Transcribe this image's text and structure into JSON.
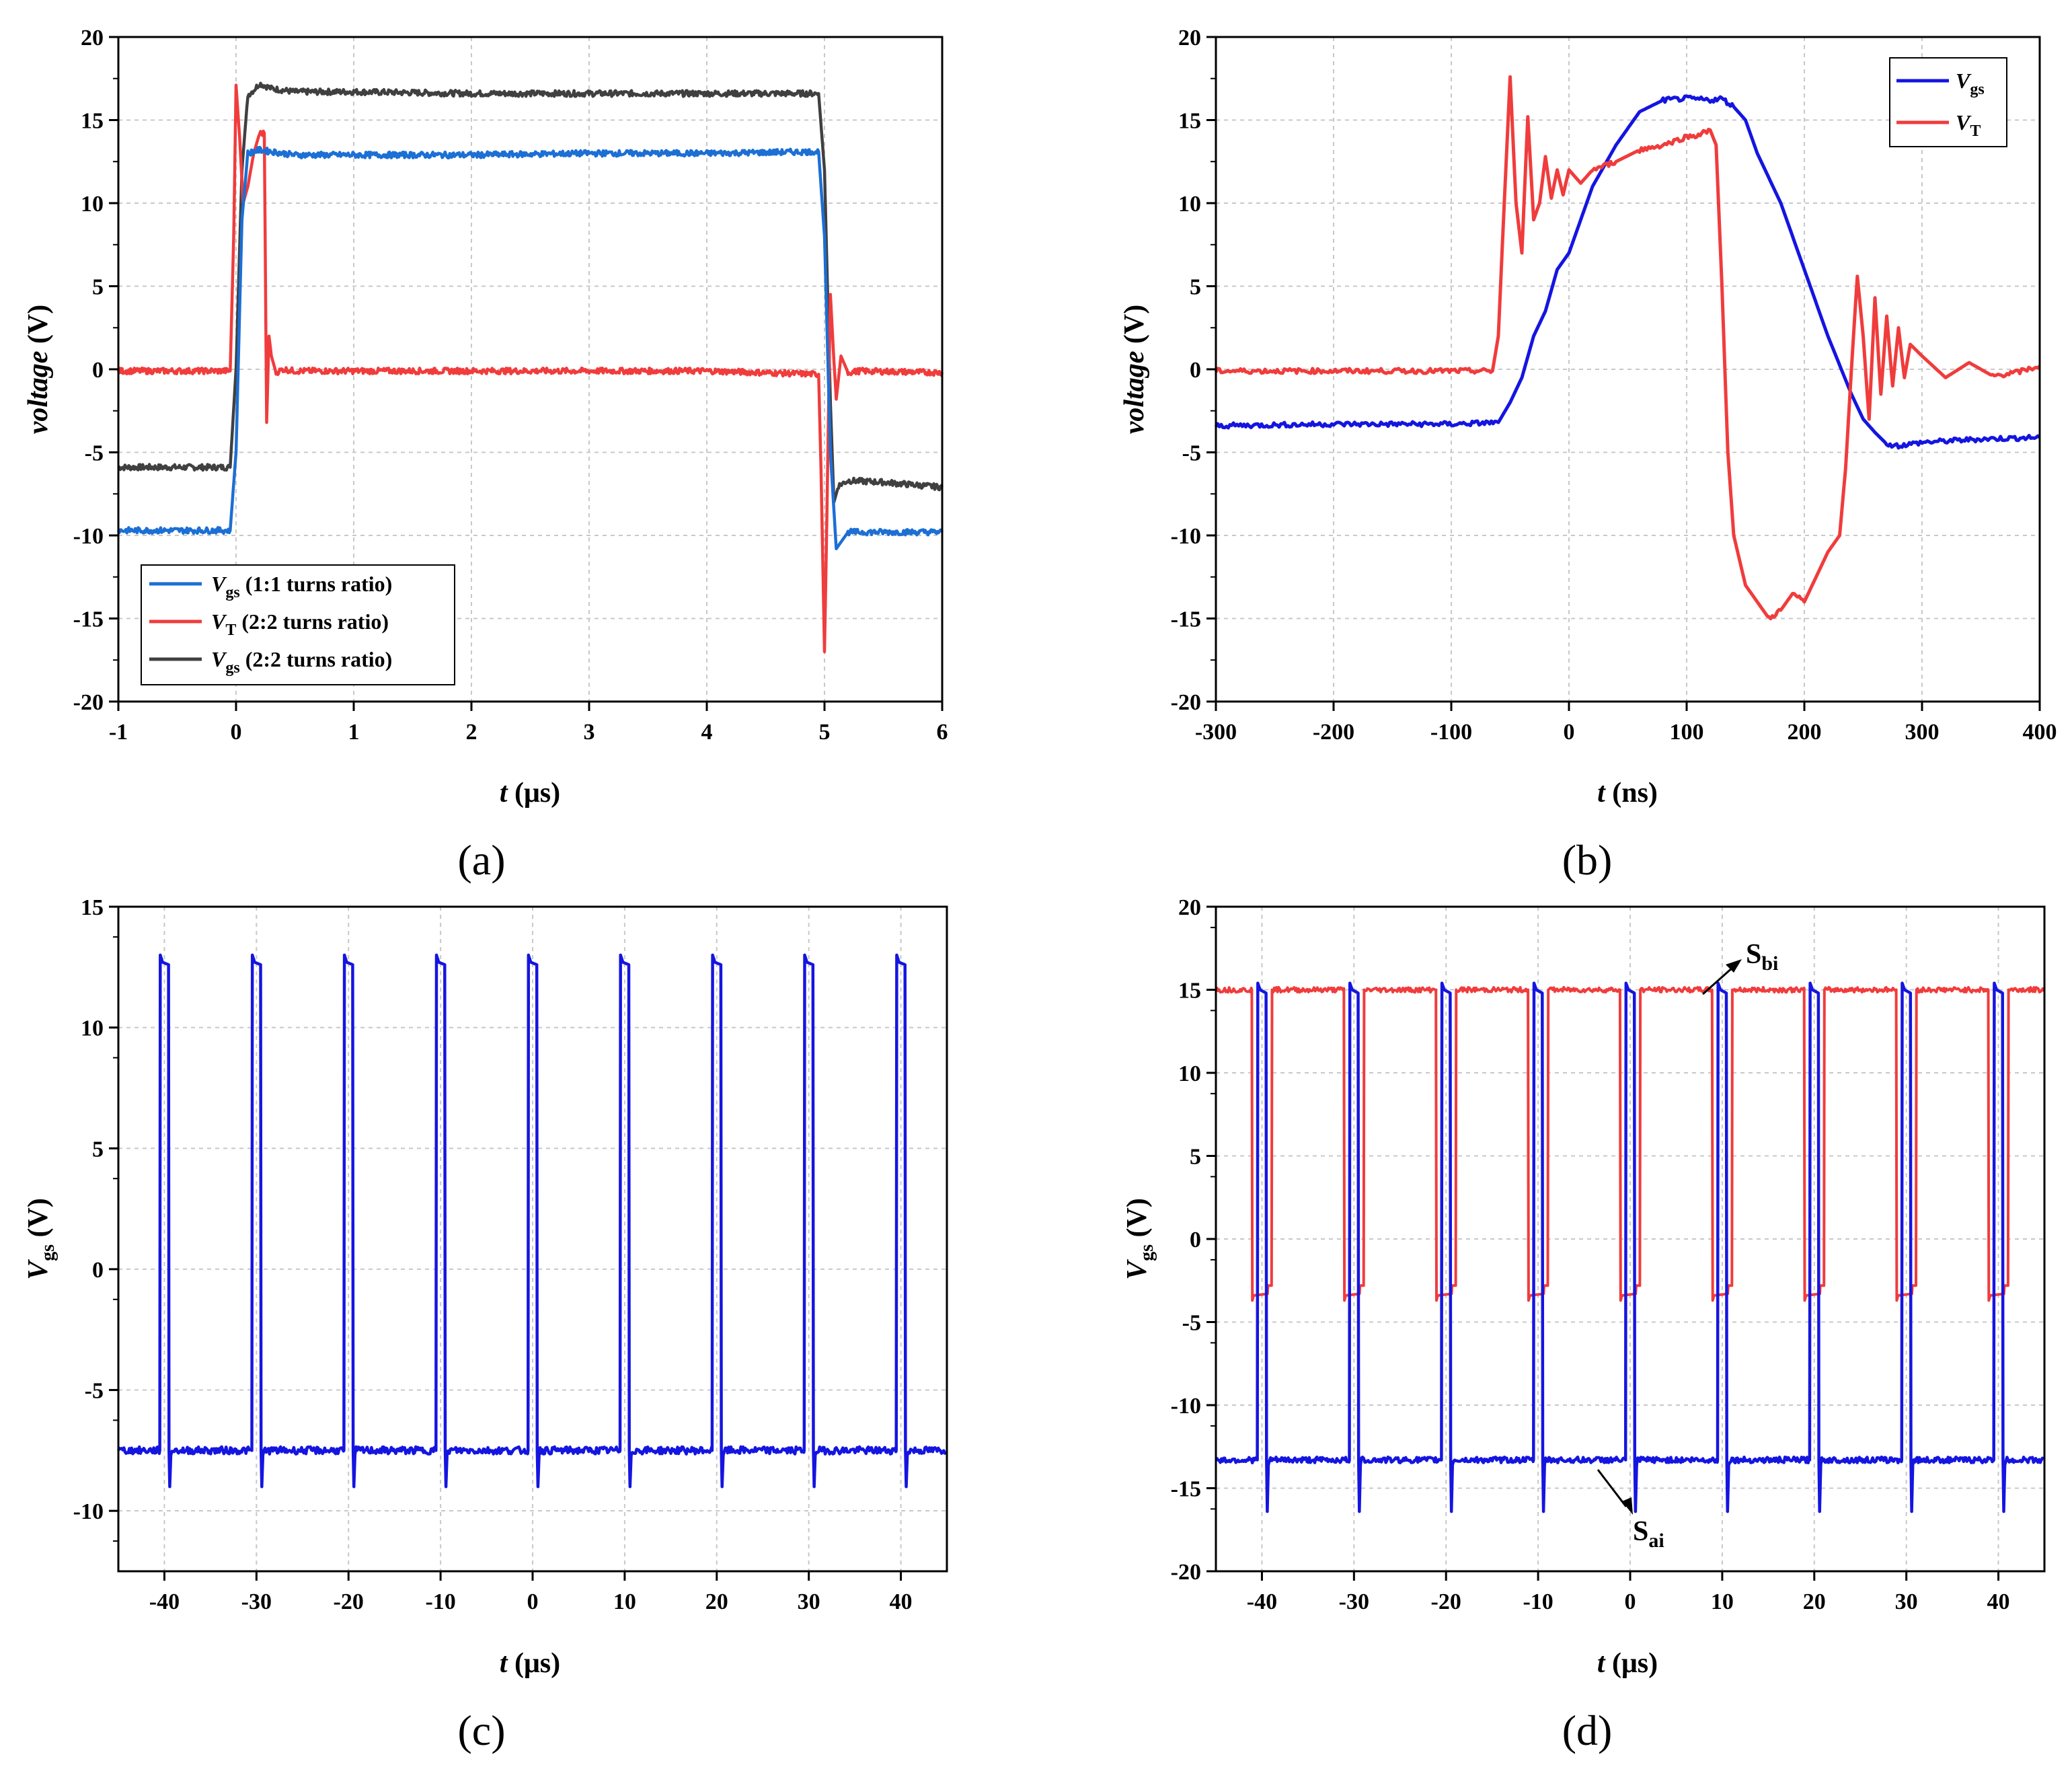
{
  "panels": [
    {
      "label": "(a)",
      "xlabel_italic": "t",
      "xlabel_rest": " (μs)",
      "ylabel_italic": "voltage",
      "ylabel_rest": " (V)",
      "xticks": [
        "-1",
        "0",
        "1",
        "2",
        "3",
        "4",
        "5",
        "6"
      ],
      "yticks": [
        "20",
        "15",
        "10",
        "5",
        "0",
        "-5",
        "-10",
        "-15",
        "-20"
      ],
      "legend": [
        {
          "main": "V",
          "sub": "gs",
          "rest": " (1:1 turns ratio)",
          "color": "#1c6fd4"
        },
        {
          "main": "V",
          "sub": "T",
          "rest": "  (2:2 turns ratio)",
          "color": "#f03c3c"
        },
        {
          "main": "V",
          "sub": "gs",
          "rest": " (2:2 turns ratio)",
          "color": "#404040"
        }
      ]
    },
    {
      "label": "(b)",
      "xlabel_italic": "t",
      "xlabel_rest": " (ns)",
      "ylabel_italic": "voltage",
      "ylabel_rest": " (V)",
      "xticks": [
        "-300",
        "-200",
        "-100",
        "0",
        "100",
        "200",
        "300",
        "400"
      ],
      "yticks": [
        "20",
        "15",
        "10",
        "5",
        "0",
        "-5",
        "-10",
        "-15",
        "-20"
      ],
      "legend": [
        {
          "main": "V",
          "sub": "gs",
          "rest": "",
          "color": "#1515e0"
        },
        {
          "main": "V",
          "sub": "T",
          "rest": "",
          "color": "#f03c3c"
        }
      ]
    },
    {
      "label": "(c)",
      "xlabel_italic": "t",
      "xlabel_rest": " (μs)",
      "ylabel_main": "V",
      "ylabel_sub": "gs",
      "ylabel_rest": " (V)",
      "xticks": [
        "-40",
        "-30",
        "-20",
        "-10",
        "0",
        "10",
        "20",
        "30",
        "40"
      ],
      "yticks": [
        "15",
        "10",
        "5",
        "0",
        "-5",
        "-10"
      ]
    },
    {
      "label": "(d)",
      "xlabel_italic": "t",
      "xlabel_rest": " (μs)",
      "ylabel_main": "V",
      "ylabel_sub": "gs",
      "ylabel_rest": " (V)",
      "xticks": [
        "-40",
        "-30",
        "-20",
        "-10",
        "0",
        "10",
        "20",
        "30",
        "40"
      ],
      "yticks": [
        "20",
        "15",
        "10",
        "5",
        "0",
        "-5",
        "-10",
        "-15",
        "-20"
      ],
      "annotations": [
        {
          "main": "S",
          "sub": "bi"
        },
        {
          "main": "S",
          "sub": "ai"
        }
      ]
    }
  ],
  "chart_data": [
    {
      "type": "line",
      "panel": "a",
      "xlim": [
        -1,
        6
      ],
      "ylim": [
        -20,
        20
      ],
      "series": [
        {
          "name": "Vgs (1:1 turns ratio)",
          "color": "#1c6fd4",
          "x": [
            -1,
            -0.05,
            0.0,
            0.05,
            0.1,
            0.2,
            0.5,
            1,
            2,
            3,
            4,
            4.95,
            5.0,
            5.05,
            5.1,
            5.2,
            6
          ],
          "y": [
            -9.7,
            -9.7,
            -5,
            9,
            13.0,
            13.2,
            12.9,
            12.9,
            12.9,
            13.0,
            13.0,
            13.1,
            8,
            -5,
            -10.8,
            -9.8,
            -9.8
          ]
        },
        {
          "name": "VT (2:2 turns ratio)",
          "color": "#f03c3c",
          "x": [
            -1,
            -0.05,
            -0.02,
            0.0,
            0.03,
            0.06,
            0.1,
            0.15,
            0.2,
            0.24,
            0.26,
            0.28,
            0.3,
            0.34,
            0.4,
            0.5,
            1,
            2,
            3,
            4,
            4.95,
            4.97,
            5.0,
            5.02,
            5.05,
            5.08,
            5.1,
            5.14,
            5.2,
            5.3,
            6
          ],
          "y": [
            -0.1,
            -0.1,
            8,
            17.1,
            14,
            10,
            11,
            13,
            14.2,
            14.2,
            -3.2,
            2,
            0.8,
            -0.2,
            0,
            -0.1,
            -0.1,
            -0.1,
            -0.1,
            -0.1,
            -0.3,
            -6,
            -17,
            -9,
            4.5,
            0.5,
            -1.8,
            0.8,
            -0.2,
            -0.1,
            -0.2
          ]
        },
        {
          "name": "Vgs (2:2 turns ratio)",
          "color": "#404040",
          "x": [
            -1,
            -0.05,
            0.0,
            0.05,
            0.1,
            0.15,
            0.2,
            0.3,
            0.5,
            1,
            2,
            3,
            4,
            4.95,
            5.0,
            5.05,
            5.08,
            5.12,
            5.2,
            5.5,
            6
          ],
          "y": [
            -5.9,
            -5.9,
            0,
            12,
            16.5,
            16.8,
            17.2,
            16.9,
            16.7,
            16.7,
            16.6,
            16.6,
            16.6,
            16.6,
            12,
            -2,
            -8,
            -7,
            -6.7,
            -6.8,
            -7.1
          ]
        }
      ],
      "xlabel": "t (μs)",
      "ylabel": "voltage (V)"
    },
    {
      "type": "line",
      "panel": "b",
      "xlim": [
        -300,
        400
      ],
      "ylim": [
        -20,
        20
      ],
      "series": [
        {
          "name": "Vgs",
          "color": "#1515e0",
          "x": [
            -300,
            -200,
            -100,
            -60,
            -50,
            -40,
            -30,
            -20,
            -10,
            0,
            10,
            20,
            40,
            60,
            80,
            100,
            120,
            130,
            140,
            150,
            160,
            180,
            200,
            220,
            240,
            250,
            260,
            270,
            280,
            300,
            350,
            400
          ],
          "y": [
            -3.4,
            -3.3,
            -3.3,
            -3.2,
            -2,
            -0.5,
            2,
            3.5,
            6,
            7,
            9,
            11,
            13.5,
            15.5,
            16.2,
            16.3,
            16.2,
            16.3,
            15.8,
            15,
            13,
            10,
            6,
            2,
            -1.5,
            -3,
            -3.8,
            -4.5,
            -4.6,
            -4.4,
            -4.2,
            -4.1
          ]
        },
        {
          "name": "VT",
          "color": "#f03c3c",
          "x": [
            -300,
            -200,
            -100,
            -65,
            -60,
            -55,
            -50,
            -45,
            -40,
            -35,
            -30,
            -25,
            -20,
            -15,
            -10,
            -5,
            0,
            10,
            20,
            40,
            60,
            80,
            100,
            110,
            120,
            125,
            130,
            135,
            140,
            150,
            160,
            170,
            180,
            190,
            200,
            210,
            220,
            230,
            235,
            240,
            245,
            250,
            255,
            260,
            265,
            270,
            275,
            280,
            285,
            290,
            300,
            320,
            340,
            360,
            380,
            400
          ],
          "y": [
            -0.1,
            -0.1,
            -0.1,
            -0.1,
            2,
            10,
            17.6,
            10,
            7,
            15.2,
            9,
            10,
            12.8,
            10.3,
            12,
            10.5,
            12,
            11.2,
            12,
            12.5,
            13.2,
            13.5,
            14,
            14.1,
            14.4,
            13.5,
            5,
            -5,
            -10,
            -13,
            -14,
            -15,
            -14.5,
            -13.5,
            -14,
            -12.5,
            -11,
            -10,
            -6,
            0,
            5.6,
            2,
            -3,
            4.3,
            -1.5,
            3.2,
            -1,
            2.5,
            -0.5,
            1.5,
            0.8,
            -0.5,
            0.4,
            -0.4,
            -0.2,
            0.2
          ]
        }
      ],
      "xlabel": "t (ns)",
      "ylabel": "voltage (V)"
    },
    {
      "type": "line",
      "panel": "c",
      "xlim": [
        -45,
        45
      ],
      "ylim": [
        -12.5,
        15
      ],
      "pulse_starts": [
        -40.5,
        -30.5,
        -20.5,
        -10.5,
        -0.5,
        9.5,
        19.5,
        29.5,
        39.5
      ],
      "pulse_width": 1.0,
      "pulse_high": 13.0,
      "pulse_low": -7.5,
      "undershoot": -9.0,
      "series": [
        {
          "name": "Vgs",
          "color": "#1515e0"
        }
      ],
      "xlabel": "t (μs)",
      "ylabel": "Vgs (V)"
    },
    {
      "type": "line",
      "panel": "d",
      "xlim": [
        -45,
        45
      ],
      "ylim": [
        -20,
        20
      ],
      "pulse_starts": [
        -40.5,
        -30.5,
        -20.5,
        -10.5,
        -0.5,
        9.5,
        19.5,
        29.5,
        39.5
      ],
      "series": [
        {
          "name": "Sbi",
          "color": "#f03c3c",
          "high": 15.0,
          "low": -3.2,
          "dip_start_offset": -0.6,
          "dip_width": 2.2,
          "undershoot": -3.7
        },
        {
          "name": "Sai",
          "color": "#1515e0",
          "high": 15.4,
          "low": -13.3,
          "pulse_offset": 0.0,
          "pulse_width": 1.0,
          "undershoot": -16.4
        }
      ],
      "xlabel": "t (μs)",
      "ylabel": "Vgs (V)"
    }
  ]
}
